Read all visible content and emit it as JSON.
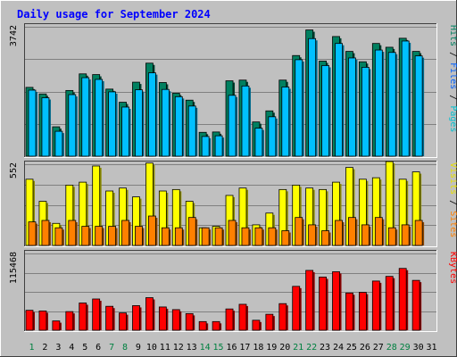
{
  "chart_data": {
    "type": "bar",
    "title": "Daily usage for September 2024",
    "categories": [
      "1",
      "2",
      "3",
      "4",
      "5",
      "6",
      "7",
      "8",
      "9",
      "10",
      "11",
      "12",
      "13",
      "14",
      "15",
      "16",
      "17",
      "18",
      "19",
      "20",
      "21",
      "22",
      "23",
      "24",
      "25",
      "26",
      "27",
      "28",
      "29",
      "30",
      "31"
    ],
    "weekend_days": [
      "1",
      "7",
      "8",
      "14",
      "15",
      "21",
      "22",
      "28",
      "29"
    ],
    "panels": [
      {
        "id": "hits-files-pages",
        "max_label": "3742",
        "ymax": 3742,
        "right_labels": [
          {
            "text": "Pages",
            "color": "#00c0d0"
          },
          {
            "text": "Files",
            "color": "#0060ff"
          },
          {
            "text": "Hits",
            "color": "#008060"
          }
        ],
        "series": [
          {
            "name": "Hits",
            "color": "#008060",
            "values": [
              1990,
              1800,
              850,
              1900,
              2380,
              2360,
              1940,
              1560,
              2140,
              2690,
              2130,
              1820,
              1620,
              690,
              700,
              2180,
              2200,
              990,
              1310,
              2200,
              2910,
              3650,
              2750,
              3460,
              3030,
              2730,
              3260,
              3150,
              3410,
              3030,
              0
            ]
          },
          {
            "name": "Files",
            "color": "#00c0ff",
            "values": [
              1910,
              1690,
              720,
              1780,
              2270,
              2220,
              1860,
              1420,
              1920,
              2410,
              1930,
              1720,
              1450,
              570,
              590,
              1760,
              2030,
              810,
              1140,
              2000,
              2790,
              3400,
              2620,
              3260,
              2840,
              2570,
              3070,
              3000,
              3330,
              2900,
              0
            ]
          }
        ]
      },
      {
        "id": "visits-sites",
        "max_label": "552",
        "ymax": 552,
        "right_labels": [
          {
            "text": "Sites",
            "color": "#ff8000"
          },
          {
            "text": "Visits",
            "color": "#e8e000"
          }
        ],
        "series": [
          {
            "name": "Visits",
            "color": "#ffff00",
            "values": [
              450,
              300,
              150,
              410,
              430,
              540,
              370,
              390,
              330,
              560,
              370,
              380,
              300,
              120,
              130,
              340,
              390,
              140,
              220,
              380,
              410,
              390,
              380,
              430,
              530,
              450,
              460,
              570,
              450,
              500,
              0
            ]
          },
          {
            "name": "Sites",
            "color": "#ff8000",
            "values": [
              160,
              170,
              120,
              170,
              130,
              130,
              130,
              170,
              130,
              200,
              120,
              120,
              190,
              120,
              120,
              170,
              120,
              120,
              120,
              100,
              190,
              140,
              100,
              170,
              190,
              140,
              190,
              120,
              140,
              170,
              0
            ]
          }
        ]
      },
      {
        "id": "kbytes",
        "max_label": "115468",
        "ymax": 115468,
        "right_labels": [
          {
            "text": "KBytes",
            "color": "#ff0000"
          }
        ],
        "series": [
          {
            "name": "KBytes",
            "color": "#ff0000",
            "values": [
              30000,
              29000,
              14000,
              28000,
              41000,
              47000,
              36000,
              26000,
              37000,
              49000,
              35000,
              31000,
              25000,
              13000,
              13000,
              32000,
              39000,
              15000,
              24000,
              40000,
              66000,
              90000,
              80000,
              88000,
              56000,
              57000,
              74000,
              81000,
              93000,
              75000,
              0
            ]
          }
        ]
      }
    ]
  },
  "colors": {
    "background": "#c0c0c0",
    "title": "#0000ff",
    "grid": "#808080",
    "axis_text": "#000000",
    "weekend_label": "#008040"
  }
}
